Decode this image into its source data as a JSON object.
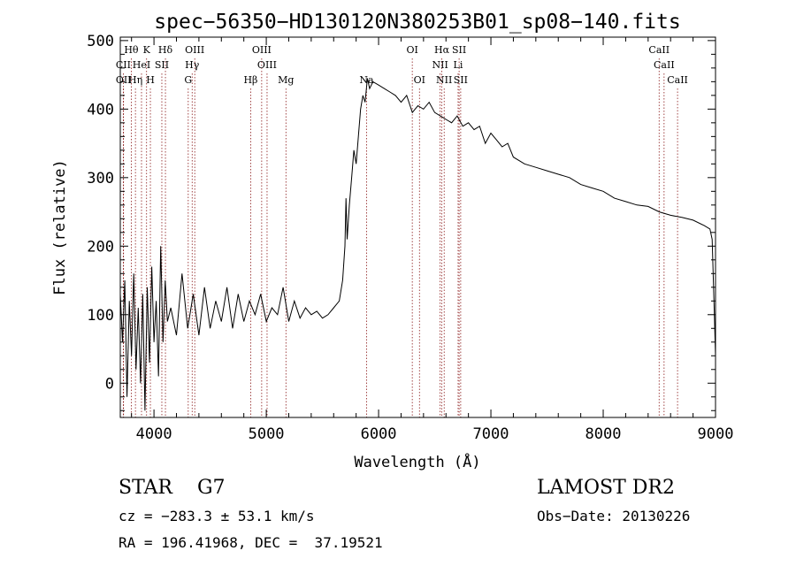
{
  "chart_data": {
    "type": "line",
    "title": "spec−56350−HD130120N380253B01_sp08−140.fits",
    "xlabel": "Wavelength (Å)",
    "ylabel": "Flux (relative)",
    "xlim": [
      3700,
      9000
    ],
    "ylim": [
      -50,
      505
    ],
    "xticks": [
      4000,
      5000,
      6000,
      7000,
      8000,
      9000
    ],
    "yticks": [
      0,
      100,
      200,
      300,
      400,
      500
    ],
    "grid": false,
    "series": [
      {
        "x": [
          3700,
          3720,
          3740,
          3760,
          3780,
          3800,
          3820,
          3840,
          3860,
          3880,
          3900,
          3920,
          3940,
          3960,
          3980,
          4000,
          4020,
          4040,
          4060,
          4080,
          4100,
          4120,
          4150,
          4200,
          4250,
          4300,
          4350,
          4400,
          4450,
          4500,
          4550,
          4600,
          4650,
          4700,
          4750,
          4800,
          4850,
          4900,
          4950,
          5000,
          5050,
          5100,
          5150,
          5200,
          5250,
          5300,
          5350,
          5400,
          5450,
          5500,
          5550,
          5600,
          5650,
          5680,
          5700,
          5710,
          5720,
          5740,
          5760,
          5780,
          5800,
          5820,
          5840,
          5860,
          5880,
          5900,
          5920,
          5950,
          6000,
          6050,
          6100,
          6150,
          6200,
          6250,
          6300,
          6350,
          6400,
          6450,
          6500,
          6550,
          6600,
          6650,
          6700,
          6750,
          6800,
          6850,
          6900,
          6950,
          7000,
          7050,
          7100,
          7150,
          7200,
          7300,
          7400,
          7500,
          7600,
          7700,
          7800,
          7900,
          8000,
          8100,
          8200,
          8300,
          8400,
          8500,
          8600,
          8700,
          8800,
          8900,
          8950,
          8970,
          8990,
          9000
        ],
        "y": [
          130,
          60,
          150,
          -20,
          120,
          40,
          160,
          20,
          110,
          0,
          130,
          -40,
          140,
          30,
          170,
          60,
          120,
          10,
          200,
          60,
          150,
          90,
          110,
          70,
          160,
          80,
          130,
          70,
          140,
          80,
          120,
          90,
          140,
          80,
          130,
          90,
          120,
          100,
          130,
          90,
          110,
          100,
          140,
          90,
          120,
          95,
          110,
          100,
          105,
          95,
          100,
          110,
          120,
          150,
          200,
          270,
          210,
          260,
          300,
          340,
          320,
          360,
          400,
          420,
          410,
          445,
          430,
          440,
          435,
          430,
          425,
          420,
          410,
          420,
          395,
          405,
          400,
          410,
          395,
          390,
          385,
          380,
          390,
          375,
          380,
          370,
          375,
          350,
          365,
          355,
          345,
          350,
          330,
          320,
          315,
          310,
          305,
          300,
          290,
          285,
          280,
          270,
          265,
          260,
          258,
          250,
          245,
          242,
          238,
          230,
          225,
          210,
          100,
          40
        ]
      }
    ],
    "lines": [
      {
        "label": "Hθ",
        "x": 3798,
        "row": 0
      },
      {
        "label": "K",
        "x": 3934,
        "row": 0
      },
      {
        "label": "Hδ",
        "x": 4102,
        "row": 0
      },
      {
        "label": "OIII",
        "x": 4363,
        "row": 0
      },
      {
        "label": "OIII",
        "x": 4959,
        "row": 0
      },
      {
        "label": "OI",
        "x": 6300,
        "row": 0
      },
      {
        "label": "Hα",
        "x": 6563,
        "row": 0
      },
      {
        "label": "SII",
        "x": 6717,
        "row": 0
      },
      {
        "label": "CaII",
        "x": 8498,
        "row": 0
      },
      {
        "label": "CII",
        "x": 3727,
        "row": 1
      },
      {
        "label": "HeI",
        "x": 3889,
        "row": 1
      },
      {
        "label": "SII",
        "x": 4070,
        "row": 1
      },
      {
        "label": "Hγ",
        "x": 4340,
        "row": 1
      },
      {
        "label": "OIII",
        "x": 5007,
        "row": 1
      },
      {
        "label": "NII",
        "x": 6548,
        "row": 1
      },
      {
        "label": "Li",
        "x": 6708,
        "row": 1
      },
      {
        "label": "CaII",
        "x": 8542,
        "row": 1
      },
      {
        "label": "OII",
        "x": 3729,
        "row": 2
      },
      {
        "label": "Hη",
        "x": 3835,
        "row": 2
      },
      {
        "label": "H",
        "x": 3968,
        "row": 2
      },
      {
        "label": "G",
        "x": 4305,
        "row": 2
      },
      {
        "label": "Hβ",
        "x": 4861,
        "row": 2
      },
      {
        "label": "Mg",
        "x": 5175,
        "row": 2
      },
      {
        "label": "Na",
        "x": 5893,
        "row": 2
      },
      {
        "label": "OI",
        "x": 6364,
        "row": 2
      },
      {
        "label": "NII",
        "x": 6584,
        "row": 2
      },
      {
        "label": "SII",
        "x": 6731,
        "row": 2
      },
      {
        "label": "CaII",
        "x": 8662,
        "row": 2
      }
    ],
    "line_color": "#8b1a1a",
    "curve_color": "#000000"
  },
  "info": {
    "object_class": "STAR    G7",
    "survey": "LAMOST DR2",
    "velocity": "cz = −283.3 ± 53.1 km/s",
    "obs_date": "Obs−Date: 20130226",
    "coordinates": "RA = 196.41968, DEC =  37.19521"
  }
}
